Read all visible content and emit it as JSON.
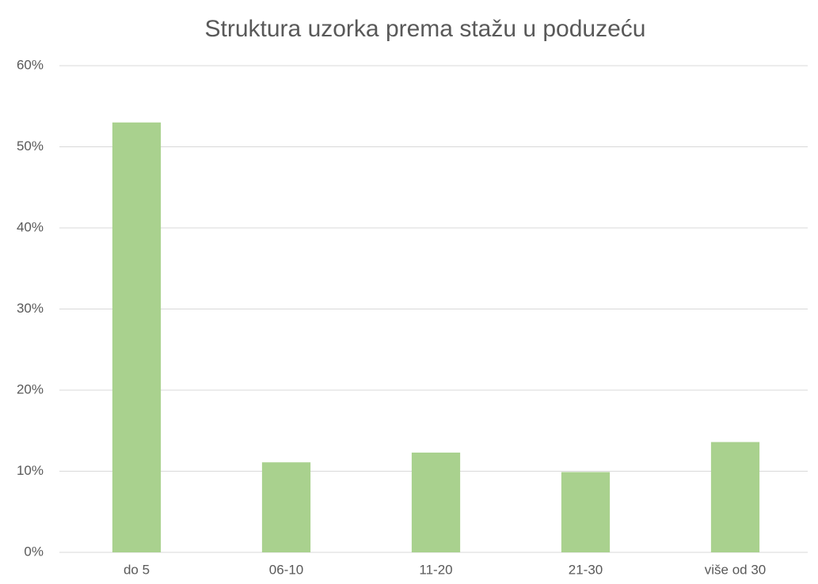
{
  "chart_data": {
    "type": "bar",
    "title": "Struktura uzorka prema stažu u poduzeću",
    "categories": [
      "do 5",
      "06-10",
      "11-20",
      "21-30",
      "više od 30"
    ],
    "values": [
      53.0,
      11.1,
      12.3,
      9.9,
      13.6
    ],
    "color": "#a9d18e",
    "ylim": [
      0,
      60
    ],
    "yticks": [
      {
        "value": 0,
        "label": "0%"
      },
      {
        "value": 10,
        "label": "10%"
      },
      {
        "value": 20,
        "label": "20%"
      },
      {
        "value": 30,
        "label": "30%"
      },
      {
        "value": 40,
        "label": "40%"
      },
      {
        "value": 50,
        "label": "50%"
      },
      {
        "value": 60,
        "label": "60%"
      }
    ],
    "grid": true
  }
}
